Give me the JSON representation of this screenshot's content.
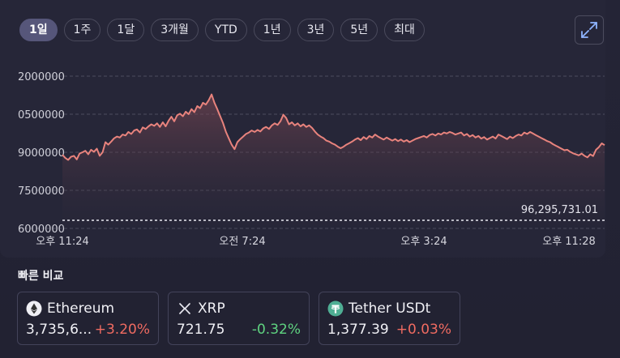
{
  "range_buttons": [
    "1일",
    "1주",
    "1달",
    "3개월",
    "YTD",
    "1년",
    "3년",
    "5년",
    "최대"
  ],
  "active_range": "1일",
  "chart_data": {
    "type": "area",
    "y_ticks": [
      "2000000",
      "0500000",
      "9000000",
      "7500000",
      "6000000"
    ],
    "x_ticks": [
      "오후 11:24",
      "오전 7:24",
      "오후 3:24",
      "오후 11:28"
    ],
    "last_value_label": "96,295,731.01",
    "line_color": "#e8837d",
    "grid": true,
    "y": [
      8.9,
      8.78,
      8.7,
      8.82,
      8.86,
      8.72,
      8.95,
      9.0,
      9.06,
      8.92,
      9.1,
      9.02,
      9.14,
      8.86,
      9.0,
      9.4,
      9.3,
      9.42,
      9.55,
      9.62,
      9.58,
      9.7,
      9.66,
      9.8,
      9.72,
      9.86,
      9.9,
      9.78,
      9.98,
      9.92,
      10.02,
      10.1,
      10.04,
      10.14,
      10.0,
      10.18,
      10.02,
      10.24,
      10.4,
      10.22,
      10.46,
      10.52,
      10.42,
      10.6,
      10.5,
      10.7,
      10.58,
      10.82,
      10.74,
      10.95,
      10.88,
      11.05,
      11.28,
      10.95,
      10.7,
      10.42,
      10.15,
      9.8,
      9.55,
      9.3,
      9.12,
      9.4,
      9.52,
      9.62,
      9.72,
      9.78,
      9.86,
      9.8,
      9.88,
      9.82,
      9.94,
      10.0,
      9.92,
      10.06,
      10.14,
      10.08,
      10.22,
      10.48,
      10.35,
      10.1,
      10.18,
      10.06,
      10.14,
      10.02,
      10.1,
      10.0,
      10.06,
      9.96,
      9.82,
      9.7,
      9.62,
      9.56,
      9.46,
      9.42,
      9.35,
      9.3,
      9.22,
      9.16,
      9.22,
      9.3,
      9.36,
      9.42,
      9.5,
      9.56,
      9.48,
      9.6,
      9.52,
      9.64,
      9.58,
      9.7,
      9.62,
      9.56,
      9.5,
      9.58,
      9.52,
      9.46,
      9.52,
      9.44,
      9.5,
      9.42,
      9.48,
      9.4,
      9.46,
      9.52,
      9.56,
      9.6,
      9.64,
      9.58,
      9.68,
      9.72,
      9.66,
      9.74,
      9.7,
      9.78,
      9.74,
      9.8,
      9.76,
      9.7,
      9.74,
      9.78,
      9.66,
      9.72,
      9.62,
      9.68,
      9.58,
      9.64,
      9.54,
      9.6,
      9.5,
      9.56,
      9.62,
      9.54,
      9.7,
      9.64,
      9.58,
      9.52,
      9.62,
      9.56,
      9.64,
      9.7,
      9.66,
      9.78,
      9.72,
      9.8,
      9.74,
      9.68,
      9.62,
      9.56,
      9.5,
      9.44,
      9.4,
      9.32,
      9.26,
      9.2,
      9.14,
      9.08,
      9.1,
      9.02,
      8.96,
      8.92,
      8.88,
      8.95,
      8.86,
      8.8,
      8.92,
      8.85,
      9.1,
      9.2,
      9.35,
      9.28
    ]
  },
  "compare": {
    "title": "빠른 비교",
    "items": [
      {
        "name": "Ethereum",
        "price": "3,735,6...",
        "change": "+3.20%",
        "direction": "up",
        "icon": "ethereum-icon"
      },
      {
        "name": "XRP",
        "price": "721.75",
        "change": "-0.32%",
        "direction": "down",
        "icon": "xrp-icon"
      },
      {
        "name": "Tether USDt",
        "price": "1,377.39",
        "change": "+0.03%",
        "direction": "up",
        "icon": "tether-icon"
      }
    ]
  },
  "colors": {
    "up": "#f06b61",
    "down": "#5fd380",
    "accent": "#56567a"
  }
}
